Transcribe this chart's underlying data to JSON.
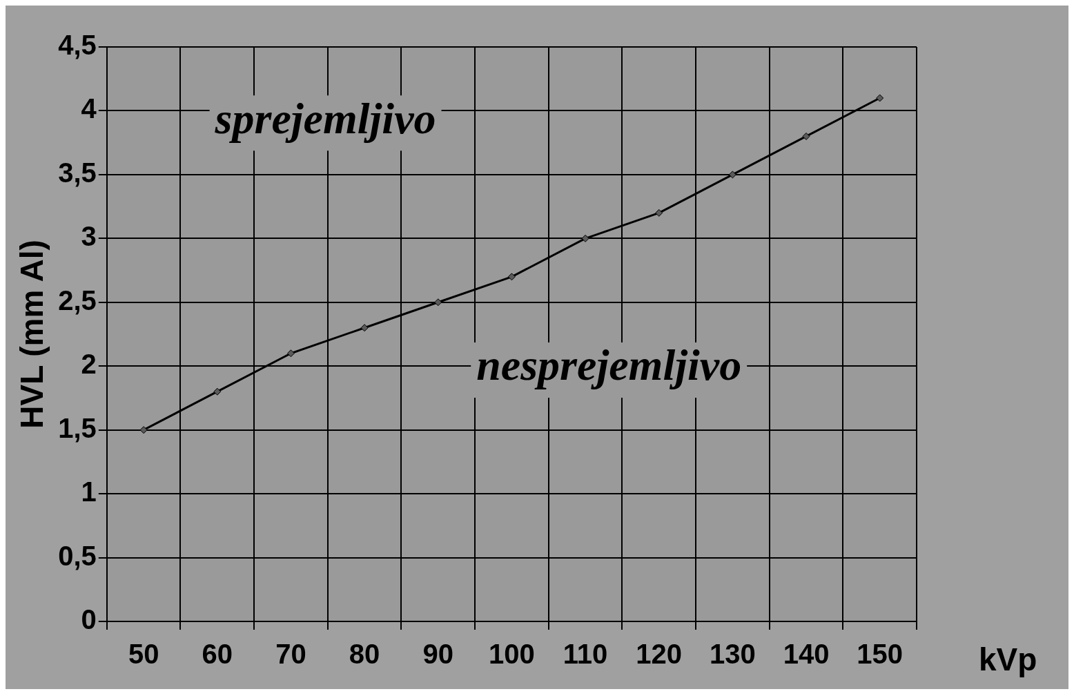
{
  "chart_data": {
    "type": "line",
    "ylabel": "HVL (mm Al)",
    "xlabel": "kVp",
    "categories": [
      "50",
      "60",
      "70",
      "80",
      "90",
      "100",
      "110",
      "120",
      "130",
      "140",
      "150"
    ],
    "series": [
      {
        "color": "#000000",
        "values": [
          1.5,
          1.8,
          2.1,
          2.3,
          2.5,
          2.7,
          3.0,
          3.2,
          3.5,
          3.8,
          4.1
        ]
      }
    ],
    "ylim": [
      0,
      4.5
    ],
    "yticks": [
      0,
      {
        "value": 0.5,
        "label": "0,5"
      },
      1,
      {
        "value": 1.5,
        "label": "1,5"
      },
      2,
      {
        "value": 2.5,
        "label": "2,5"
      },
      3,
      {
        "value": 3.5,
        "label": "3,5"
      },
      4,
      {
        "value": 4.5,
        "label": "4,5"
      }
    ],
    "annotations": [
      "sprejemljivo",
      "nesprejemljivo"
    ],
    "grid": true,
    "legend": false,
    "marker": "diamond",
    "line_style": "solid"
  }
}
